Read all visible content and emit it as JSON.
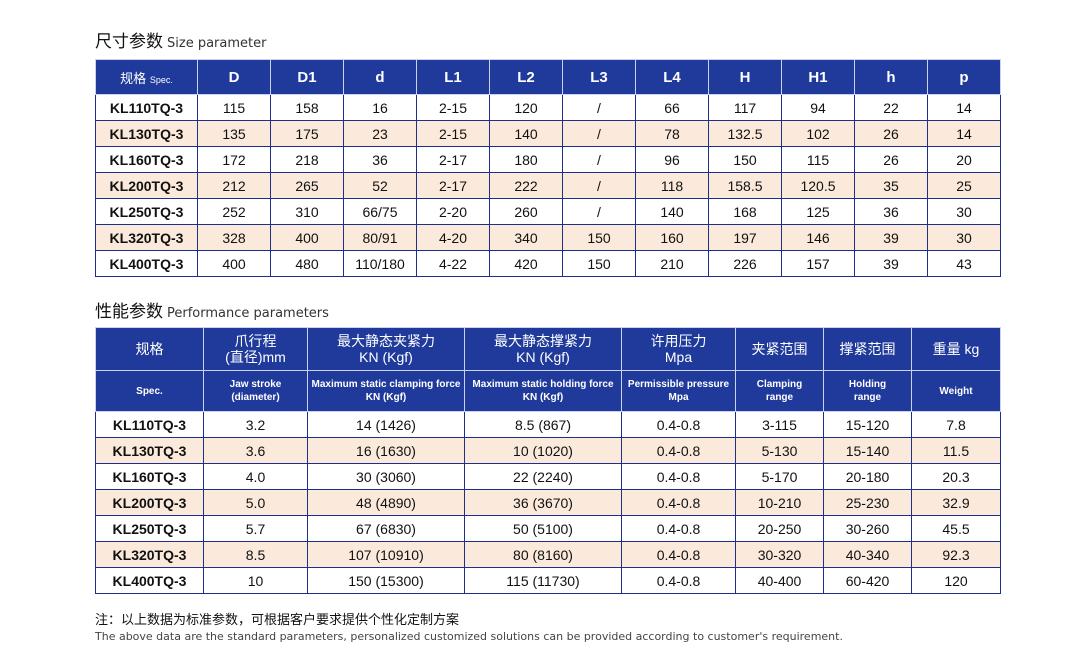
{
  "size_section": {
    "title_zh": "尺寸参数",
    "title_en": "Size parameter",
    "header_spec_zh": "规格",
    "header_spec_en": "Spec.",
    "columns": [
      "D",
      "D1",
      "d",
      "L1",
      "L2",
      "L3",
      "L4",
      "H",
      "H1",
      "h",
      "p"
    ],
    "rows": [
      [
        "KL110TQ-3",
        "115",
        "158",
        "16",
        "2-15",
        "120",
        "/",
        "66",
        "117",
        "94",
        "22",
        "14"
      ],
      [
        "KL130TQ-3",
        "135",
        "175",
        "23",
        "2-15",
        "140",
        "/",
        "78",
        "132.5",
        "102",
        "26",
        "14"
      ],
      [
        "KL160TQ-3",
        "172",
        "218",
        "36",
        "2-17",
        "180",
        "/",
        "96",
        "150",
        "115",
        "26",
        "20"
      ],
      [
        "KL200TQ-3",
        "212",
        "265",
        "52",
        "2-17",
        "222",
        "/",
        "118",
        "158.5",
        "120.5",
        "35",
        "25"
      ],
      [
        "KL250TQ-3",
        "252",
        "310",
        "66/75",
        "2-20",
        "260",
        "/",
        "140",
        "168",
        "125",
        "36",
        "30"
      ],
      [
        "KL320TQ-3",
        "328",
        "400",
        "80/91",
        "4-20",
        "340",
        "150",
        "160",
        "197",
        "146",
        "39",
        "30"
      ],
      [
        "KL400TQ-3",
        "400",
        "480",
        "110/180",
        "4-22",
        "420",
        "150",
        "210",
        "226",
        "157",
        "39",
        "43"
      ]
    ]
  },
  "perf_section": {
    "title_zh": "性能参数",
    "title_en": "Performance parameters",
    "headers_zh": [
      [
        "规格"
      ],
      [
        "爪行程",
        "(直径)mm"
      ],
      [
        "最大静态夹紧力",
        "KN (Kgf)"
      ],
      [
        "最大静态撑紧力",
        "KN (Kgf)"
      ],
      [
        "许用压力",
        "Mpa"
      ],
      [
        "夹紧范围"
      ],
      [
        "撑紧范围"
      ],
      [
        "重量 kg"
      ]
    ],
    "headers_en": [
      [
        "Spec."
      ],
      [
        "Jaw stroke",
        "(diameter)"
      ],
      [
        "Maximum static clamping force",
        "KN (Kgf)"
      ],
      [
        "Maximum static holding force",
        "KN (Kgf)"
      ],
      [
        "Permissible pressure",
        "Mpa"
      ],
      [
        "Clamping",
        "range"
      ],
      [
        "Holding",
        "range"
      ],
      [
        "Weight"
      ]
    ],
    "rows": [
      [
        "KL110TQ-3",
        "3.2",
        "14 (1426)",
        "8.5 (867)",
        "0.4-0.8",
        "3-115",
        "15-120",
        "7.8"
      ],
      [
        "KL130TQ-3",
        "3.6",
        "16 (1630)",
        "10 (1020)",
        "0.4-0.8",
        "5-130",
        "15-140",
        "11.5"
      ],
      [
        "KL160TQ-3",
        "4.0",
        "30 (3060)",
        "22 (2240)",
        "0.4-0.8",
        "5-170",
        "20-180",
        "20.3"
      ],
      [
        "KL200TQ-3",
        "5.0",
        "48 (4890)",
        "36 (3670)",
        "0.4-0.8",
        "10-210",
        "25-230",
        "32.9"
      ],
      [
        "KL250TQ-3",
        "5.7",
        "67 (6830)",
        "50 (5100)",
        "0.4-0.8",
        "20-250",
        "30-260",
        "45.5"
      ],
      [
        "KL320TQ-3",
        "8.5",
        "107 (10910)",
        "80 (8160)",
        "0.4-0.8",
        "30-320",
        "40-340",
        "92.3"
      ],
      [
        "KL400TQ-3",
        "10",
        "150 (15300)",
        "115 (11730)",
        "0.4-0.8",
        "40-400",
        "60-420",
        "120"
      ]
    ]
  },
  "note": {
    "zh": "注：以上数据为标准参数，可根据客户要求提供个性化定制方案",
    "en": "The above data are the standard parameters, personalized customized solutions can be provided according to customer's requirement."
  },
  "colors": {
    "header_bg": "#1f3a9a",
    "alt_row_bg": "#fbeadb",
    "border": "#1d2f8a"
  }
}
